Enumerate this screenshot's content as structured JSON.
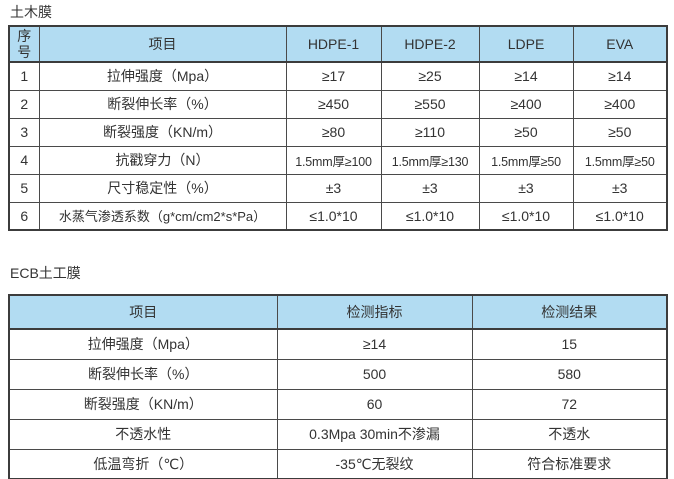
{
  "theme": {
    "header_bg": "#b2dcf2",
    "border_color": "#3c3c3c",
    "text_color": "#333333",
    "page_bg": "#ffffff"
  },
  "table1": {
    "title": "土木膜",
    "headers": [
      "序号",
      "项目",
      "HDPE-1",
      "HDPE-2",
      "LDPE",
      "EVA"
    ],
    "rows": [
      [
        "1",
        "拉伸强度（Mpa）",
        "≥17",
        "≥25",
        "≥14",
        "≥14"
      ],
      [
        "2",
        "断裂伸长率（%）",
        "≥450",
        "≥550",
        "≥400",
        "≥400"
      ],
      [
        "3",
        "断裂强度（KN/m）",
        "≥80",
        "≥110",
        "≥50",
        "≥50"
      ],
      [
        "4",
        "抗戳穿力（N）",
        "1.5mm厚≥100",
        "1.5mm厚≥130",
        "1.5mm厚≥50",
        "1.5mm厚≥50"
      ],
      [
        "5",
        "尺寸稳定性（%）",
        "±3",
        "±3",
        "±3",
        "±3"
      ],
      [
        "6",
        "水蒸气渗透系数（g*cm/cm2*s*Pa）",
        "≤1.0*10",
        "≤1.0*10",
        "≤1.0*10",
        "≤1.0*10"
      ]
    ]
  },
  "table2": {
    "title": "ECB土工膜",
    "headers": [
      "项目",
      "检测指标",
      "检测结果"
    ],
    "rows": [
      [
        "拉伸强度（Mpa）",
        "≥14",
        "15"
      ],
      [
        "断裂伸长率（%）",
        "500",
        "580"
      ],
      [
        "断裂强度（KN/m）",
        "60",
        "72"
      ],
      [
        "不透水性",
        "0.3Mpa 30min不渗漏",
        "不透水"
      ],
      [
        "低温弯折（℃）",
        "-35℃无裂纹",
        "符合标准要求"
      ]
    ]
  }
}
